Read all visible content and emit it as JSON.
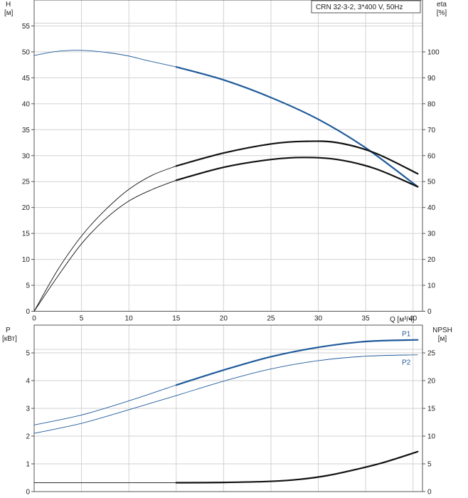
{
  "chart_data": [
    {
      "type": "line",
      "legend_box": "CRN 32-3-2, 3*400 V, 50Hz",
      "legend_placement": "top-right",
      "xlabel": "Q [м³/ч]",
      "xlim": [
        0,
        41
      ],
      "xticks": [
        0,
        5,
        10,
        15,
        20,
        25,
        30,
        35,
        40
      ],
      "grid": true,
      "left_axis": {
        "label_line1": "H",
        "label_line2": "[м]",
        "range": [
          0,
          60
        ],
        "ticks": [
          0,
          5,
          10,
          15,
          20,
          25,
          30,
          35,
          40,
          45,
          50,
          55
        ]
      },
      "right_axis": {
        "label_line1": "eta",
        "label_line2": "[%]",
        "range": [
          0,
          120
        ],
        "ticks": [
          0,
          10,
          20,
          30,
          40,
          50,
          60,
          70,
          80,
          90,
          100
        ]
      },
      "series": [
        {
          "axis": "left",
          "color": "#1f5a9a",
          "thin_range": [
            0,
            15
          ],
          "thick_range": [
            15,
            40.5
          ],
          "x": [
            0,
            2,
            4,
            5,
            6,
            8,
            10,
            12,
            15,
            20,
            25,
            30,
            35,
            40.5
          ],
          "y": [
            49.3,
            50.0,
            50.3,
            50.3,
            50.2,
            49.8,
            49.2,
            48.3,
            47.1,
            44.6,
            41.2,
            37.0,
            31.5,
            24.0
          ]
        },
        {
          "axis": "right",
          "color": "#111111",
          "thin_range": [
            0,
            15
          ],
          "thick_range": [
            15,
            40.5
          ],
          "x": [
            0,
            2.5,
            5,
            7.5,
            10,
            12.5,
            15,
            20,
            25,
            28.5,
            32,
            36,
            40.5
          ],
          "y": [
            0,
            16,
            29,
            39,
            47,
            52.5,
            56,
            61,
            64.5,
            65.5,
            65,
            61,
            53
          ]
        },
        {
          "axis": "right",
          "color": "#111111",
          "thin_range": [
            0,
            15
          ],
          "thick_range": [
            15,
            40.5
          ],
          "x": [
            0,
            2.5,
            5,
            7.5,
            10,
            12.5,
            15,
            20,
            25,
            28.5,
            32,
            36,
            40.5
          ],
          "y": [
            0,
            13.5,
            26,
            35.5,
            42.5,
            47,
            50.5,
            55.5,
            58.5,
            59.3,
            58.5,
            55,
            48
          ]
        }
      ]
    },
    {
      "type": "line",
      "xlim": [
        0,
        41
      ],
      "xticks": [
        0,
        5,
        10,
        15,
        20,
        25,
        30,
        35,
        40
      ],
      "grid": true,
      "left_axis": {
        "label_line1": "P",
        "label_line2": "[кВт]",
        "range": [
          0,
          6
        ],
        "ticks": [
          0,
          1,
          2,
          3,
          4,
          5
        ]
      },
      "right_axis": {
        "label_line1": "NPSH",
        "label_line2": "[м]",
        "range": [
          0,
          30
        ],
        "ticks": [
          0,
          5,
          10,
          15,
          20,
          25
        ]
      },
      "series": [
        {
          "name": "P1",
          "axis": "left",
          "color": "#1f5a9a",
          "thin_range": [
            0,
            15
          ],
          "thick_range": [
            15,
            40.5
          ],
          "x": [
            0,
            5,
            10,
            15,
            20,
            25,
            30,
            35,
            40.5
          ],
          "y": [
            2.4,
            2.76,
            3.27,
            3.84,
            4.38,
            4.86,
            5.2,
            5.41,
            5.47
          ]
        },
        {
          "name": "P2",
          "axis": "left",
          "color": "#1f5a9a",
          "thin_range": [
            0,
            40.5
          ],
          "thick_range": [
            0,
            0
          ],
          "x": [
            0,
            5,
            10,
            15,
            20,
            25,
            30,
            35,
            40.5
          ],
          "y": [
            2.1,
            2.46,
            2.95,
            3.46,
            3.98,
            4.42,
            4.72,
            4.88,
            4.93
          ]
        },
        {
          "axis": "right",
          "color": "#111111",
          "thin_range": [
            0,
            15
          ],
          "thick_range": [
            15,
            40.5
          ],
          "x": [
            0,
            15,
            20,
            25,
            28,
            31,
            34,
            37,
            40.5
          ],
          "y": [
            1.6,
            1.6,
            1.65,
            1.85,
            2.2,
            2.9,
            4.0,
            5.3,
            7.2
          ]
        }
      ]
    }
  ]
}
